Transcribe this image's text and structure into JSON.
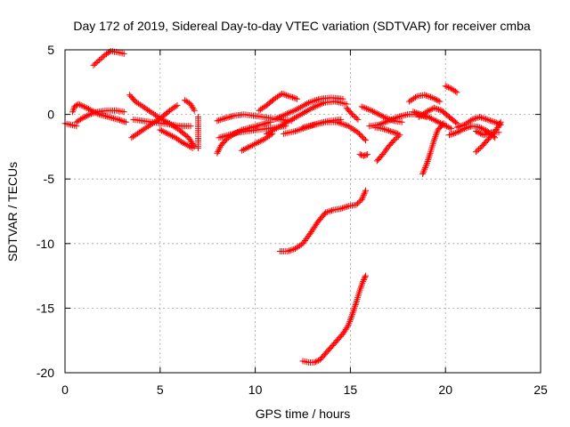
{
  "chart_data": {
    "type": "scatter",
    "title": "Day 172 of 2019, Sidereal Day-to-day VTEC variation (SDTVAR) for receiver cmba",
    "xlabel": "GPS time / hours",
    "ylabel": "SDTVAR / TECUs",
    "xlim": [
      0,
      25
    ],
    "ylim": [
      -20,
      5
    ],
    "xticks": [
      0,
      5,
      10,
      15,
      20,
      25
    ],
    "yticks": [
      5,
      0,
      -5,
      -10,
      -15,
      -20
    ],
    "xtick_labels": [
      "0",
      "5",
      "10",
      "15",
      "20",
      "25"
    ],
    "ytick_labels": [
      "5",
      "0",
      "-5",
      "-10",
      "-15",
      "-20"
    ],
    "grid": true,
    "marker": "+",
    "series_color": "#ff0000",
    "arcs": [
      {
        "name": "arc-01",
        "points": [
          [
            0.0,
            -0.7
          ],
          [
            0.3,
            -0.8
          ],
          [
            0.6,
            -0.9
          ]
        ]
      },
      {
        "name": "arc-02",
        "points": [
          [
            0.4,
            0.2
          ],
          [
            0.5,
            0.6
          ],
          [
            0.7,
            0.8
          ],
          [
            1.0,
            0.6
          ],
          [
            1.4,
            0.3
          ],
          [
            1.8,
            0.0
          ],
          [
            2.3,
            -0.2
          ],
          [
            2.8,
            -0.4
          ],
          [
            3.2,
            -0.6
          ]
        ]
      },
      {
        "name": "arc-03",
        "points": [
          [
            0.6,
            -0.6
          ],
          [
            0.9,
            -0.3
          ],
          [
            1.3,
            0.0
          ],
          [
            1.7,
            0.2
          ],
          [
            2.2,
            0.3
          ],
          [
            2.7,
            0.3
          ],
          [
            3.1,
            0.2
          ]
        ]
      },
      {
        "name": "arc-04",
        "points": [
          [
            1.5,
            3.8
          ],
          [
            1.8,
            4.2
          ],
          [
            2.1,
            4.6
          ],
          [
            2.4,
            4.9
          ],
          [
            2.8,
            4.8
          ],
          [
            3.1,
            4.7
          ]
        ]
      },
      {
        "name": "arc-05",
        "points": [
          [
            3.4,
            1.5
          ],
          [
            3.7,
            1.0
          ],
          [
            4.1,
            0.6
          ],
          [
            4.5,
            0.2
          ],
          [
            5.0,
            -0.3
          ],
          [
            5.5,
            -0.7
          ],
          [
            6.0,
            -1.2
          ],
          [
            6.5,
            -1.8
          ],
          [
            6.8,
            -2.5
          ]
        ]
      },
      {
        "name": "arc-06",
        "points": [
          [
            3.5,
            -1.8
          ],
          [
            3.9,
            -1.4
          ],
          [
            4.3,
            -1.0
          ],
          [
            4.7,
            -0.6
          ],
          [
            5.1,
            -0.2
          ],
          [
            5.5,
            0.3
          ],
          [
            5.9,
            0.7
          ]
        ]
      },
      {
        "name": "arc-07",
        "points": [
          [
            3.6,
            -0.4
          ],
          [
            4.1,
            -0.5
          ],
          [
            4.6,
            -0.6
          ],
          [
            5.1,
            -0.7
          ],
          [
            5.6,
            -0.8
          ],
          [
            6.1,
            -0.9
          ],
          [
            6.6,
            -0.9
          ]
        ]
      },
      {
        "name": "arc-08",
        "points": [
          [
            5.0,
            -1.2
          ],
          [
            5.4,
            -1.5
          ],
          [
            5.8,
            -1.8
          ],
          [
            6.2,
            -2.2
          ],
          [
            6.7,
            -2.6
          ]
        ]
      },
      {
        "name": "arc-09",
        "points": [
          [
            6.3,
            1.1
          ],
          [
            6.6,
            0.8
          ],
          [
            6.8,
            0.3
          ]
        ]
      },
      {
        "name": "arc-10",
        "points": [
          [
            7.0,
            -0.2
          ],
          [
            7.0,
            -0.8
          ],
          [
            7.0,
            -1.4
          ],
          [
            7.0,
            -2.0
          ],
          [
            7.0,
            -2.6
          ]
        ]
      },
      {
        "name": "arc-11",
        "points": [
          [
            8.0,
            -3.0
          ],
          [
            8.2,
            -2.4
          ],
          [
            8.5,
            -1.9
          ],
          [
            8.9,
            -1.5
          ],
          [
            9.3,
            -1.2
          ],
          [
            9.8,
            -1.0
          ],
          [
            10.3,
            -0.8
          ],
          [
            10.8,
            -0.6
          ]
        ]
      },
      {
        "name": "arc-12",
        "points": [
          [
            8.0,
            -0.5
          ],
          [
            8.4,
            -0.3
          ],
          [
            8.9,
            -0.1
          ],
          [
            9.4,
            0.0
          ],
          [
            9.9,
            -0.1
          ],
          [
            10.4,
            -0.2
          ],
          [
            10.9,
            -0.3
          ],
          [
            11.4,
            -0.4
          ],
          [
            11.9,
            -0.5
          ]
        ]
      },
      {
        "name": "arc-13",
        "points": [
          [
            8.1,
            -1.8
          ],
          [
            8.6,
            -1.6
          ],
          [
            9.1,
            -1.4
          ],
          [
            9.6,
            -1.3
          ],
          [
            10.1,
            -1.2
          ],
          [
            10.6,
            -1.1
          ],
          [
            11.1,
            -1.0
          ],
          [
            11.6,
            -0.9
          ]
        ]
      },
      {
        "name": "arc-14",
        "points": [
          [
            9.3,
            -2.8
          ],
          [
            9.7,
            -2.5
          ],
          [
            10.1,
            -2.2
          ],
          [
            10.5,
            -1.9
          ],
          [
            10.9,
            -1.5
          ]
        ]
      },
      {
        "name": "arc-15",
        "points": [
          [
            10.2,
            0.3
          ],
          [
            10.6,
            0.7
          ],
          [
            11.0,
            1.2
          ],
          [
            11.4,
            1.6
          ],
          [
            11.8,
            1.4
          ],
          [
            12.2,
            1.2
          ]
        ]
      },
      {
        "name": "arc-16",
        "points": [
          [
            10.6,
            -1.5
          ],
          [
            11.2,
            -1.0
          ],
          [
            11.8,
            -0.5
          ],
          [
            12.4,
            0.0
          ],
          [
            13.0,
            0.5
          ],
          [
            13.6,
            0.9
          ],
          [
            14.2,
            1.0
          ],
          [
            14.8,
            0.8
          ]
        ]
      },
      {
        "name": "arc-17",
        "points": [
          [
            11.0,
            -0.4
          ],
          [
            11.6,
            0.0
          ],
          [
            12.2,
            0.4
          ],
          [
            12.8,
            0.9
          ],
          [
            13.4,
            1.2
          ],
          [
            14.0,
            1.3
          ],
          [
            14.6,
            1.2
          ]
        ]
      },
      {
        "name": "arc-18",
        "points": [
          [
            11.5,
            -1.5
          ],
          [
            12.1,
            -1.3
          ],
          [
            12.7,
            -1.0
          ],
          [
            13.3,
            -0.7
          ],
          [
            13.9,
            -0.5
          ],
          [
            14.5,
            -0.4
          ]
        ]
      },
      {
        "name": "arc-19",
        "points": [
          [
            12.5,
            -1.0
          ],
          [
            13.1,
            -0.8
          ],
          [
            13.7,
            -0.6
          ],
          [
            14.3,
            -0.6
          ],
          [
            14.9,
            -0.9
          ],
          [
            15.4,
            -1.4
          ],
          [
            15.8,
            -2.0
          ]
        ]
      },
      {
        "name": "arc-20",
        "points": [
          [
            14.8,
            0.5
          ],
          [
            15.1,
            0.0
          ],
          [
            15.4,
            -0.4
          ]
        ]
      },
      {
        "name": "arc-21",
        "points": [
          [
            15.5,
            -3.1
          ],
          [
            15.7,
            -3.2
          ],
          [
            15.9,
            -3.1
          ]
        ]
      },
      {
        "name": "arc-22",
        "points": [
          [
            15.6,
            0.6
          ],
          [
            16.1,
            0.3
          ],
          [
            16.5,
            0.0
          ],
          [
            16.9,
            -0.3
          ],
          [
            17.3,
            -0.5
          ],
          [
            17.7,
            -0.6
          ]
        ]
      },
      {
        "name": "arc-23",
        "points": [
          [
            16.0,
            -0.9
          ],
          [
            16.5,
            -0.8
          ],
          [
            17.0,
            -0.5
          ],
          [
            17.5,
            -0.2
          ],
          [
            18.0,
            0.0
          ],
          [
            18.5,
            0.0
          ],
          [
            19.0,
            -0.2
          ]
        ]
      },
      {
        "name": "arc-24",
        "points": [
          [
            16.3,
            -1.0
          ],
          [
            16.7,
            -1.1
          ],
          [
            17.1,
            -1.3
          ],
          [
            17.5,
            -1.5
          ]
        ]
      },
      {
        "name": "arc-25",
        "points": [
          [
            16.4,
            -3.6
          ],
          [
            16.7,
            -3.1
          ],
          [
            17.0,
            -2.5
          ],
          [
            17.3,
            -2.0
          ],
          [
            17.6,
            -1.6
          ]
        ]
      },
      {
        "name": "arc-26",
        "points": [
          [
            18.1,
            1.0
          ],
          [
            18.5,
            1.4
          ],
          [
            18.9,
            1.5
          ],
          [
            19.3,
            1.3
          ],
          [
            19.7,
            1.0
          ]
        ]
      },
      {
        "name": "arc-27",
        "points": [
          [
            18.3,
            0.2
          ],
          [
            18.7,
            0.0
          ],
          [
            19.1,
            -0.2
          ],
          [
            19.5,
            -0.5
          ],
          [
            19.9,
            -0.8
          ],
          [
            20.3,
            -1.1
          ]
        ]
      },
      {
        "name": "arc-28",
        "points": [
          [
            18.6,
            -0.2
          ],
          [
            19.0,
            0.2
          ],
          [
            19.4,
            0.5
          ],
          [
            19.8,
            0.3
          ],
          [
            20.2,
            -0.2
          ],
          [
            20.6,
            -0.7
          ]
        ]
      },
      {
        "name": "arc-29",
        "points": [
          [
            18.8,
            -4.6
          ],
          [
            19.0,
            -3.9
          ],
          [
            19.2,
            -3.0
          ],
          [
            19.4,
            -2.0
          ],
          [
            19.6,
            -1.2
          ],
          [
            19.9,
            -0.7
          ]
        ]
      },
      {
        "name": "arc-30",
        "points": [
          [
            20.0,
            2.2
          ],
          [
            20.3,
            2.0
          ],
          [
            20.6,
            1.7
          ]
        ]
      },
      {
        "name": "arc-31",
        "points": [
          [
            20.2,
            -1.6
          ],
          [
            20.6,
            -1.4
          ],
          [
            21.0,
            -1.1
          ],
          [
            21.4,
            -0.9
          ],
          [
            21.8,
            -1.0
          ],
          [
            22.2,
            -1.3
          ],
          [
            22.6,
            -1.8
          ]
        ]
      },
      {
        "name": "arc-32",
        "points": [
          [
            20.6,
            -1.0
          ],
          [
            21.0,
            -0.8
          ],
          [
            21.4,
            -0.4
          ],
          [
            21.8,
            -0.2
          ],
          [
            22.2,
            -0.4
          ],
          [
            22.6,
            -0.6
          ],
          [
            22.9,
            -0.8
          ]
        ]
      },
      {
        "name": "arc-33",
        "points": [
          [
            21.6,
            -1.3
          ],
          [
            22.0,
            -1.6
          ],
          [
            22.4,
            -1.4
          ],
          [
            22.8,
            -1.4
          ]
        ]
      },
      {
        "name": "arc-34",
        "points": [
          [
            21.6,
            -2.9
          ],
          [
            21.9,
            -2.5
          ],
          [
            22.2,
            -2.0
          ],
          [
            22.5,
            -1.5
          ],
          [
            22.8,
            -0.9
          ],
          [
            22.9,
            -0.6
          ]
        ]
      },
      {
        "name": "arc-35",
        "points": [
          [
            11.3,
            -10.6
          ],
          [
            11.7,
            -10.6
          ],
          [
            12.1,
            -10.4
          ],
          [
            12.5,
            -10.0
          ],
          [
            12.9,
            -9.2
          ],
          [
            13.3,
            -8.3
          ],
          [
            13.7,
            -7.6
          ],
          [
            14.1,
            -7.4
          ],
          [
            14.5,
            -7.3
          ],
          [
            14.9,
            -7.1
          ],
          [
            15.3,
            -7.0
          ],
          [
            15.6,
            -6.6
          ],
          [
            15.8,
            -5.9
          ]
        ]
      },
      {
        "name": "arc-36",
        "points": [
          [
            12.5,
            -19.1
          ],
          [
            12.8,
            -19.2
          ],
          [
            13.1,
            -19.2
          ],
          [
            13.4,
            -19.0
          ],
          [
            13.7,
            -18.5
          ],
          [
            14.0,
            -18.0
          ],
          [
            14.3,
            -17.5
          ],
          [
            14.6,
            -17.0
          ],
          [
            14.9,
            -16.3
          ],
          [
            15.1,
            -15.5
          ],
          [
            15.3,
            -14.6
          ],
          [
            15.5,
            -13.6
          ],
          [
            15.7,
            -12.8
          ],
          [
            15.8,
            -12.5
          ]
        ]
      }
    ]
  }
}
